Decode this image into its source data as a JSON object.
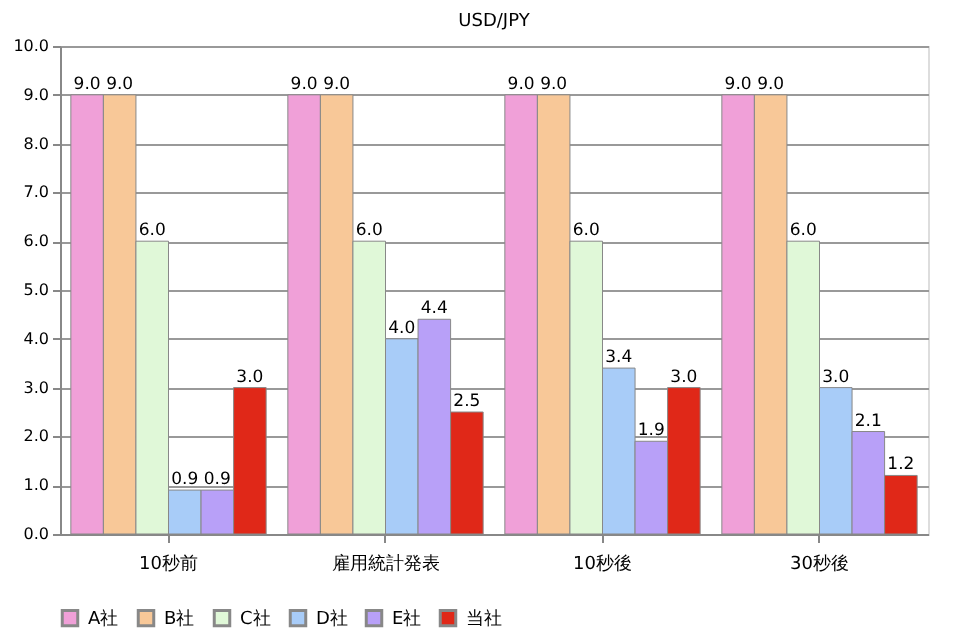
{
  "chart_data": {
    "type": "bar",
    "title": "USD/JPY",
    "categories": [
      "10秒前",
      "雇用統計発表",
      "10秒後",
      "30秒後"
    ],
    "series": [
      {
        "name": "A社",
        "color": "#f0a0d8",
        "values": [
          9.0,
          9.0,
          9.0,
          9.0
        ],
        "value_labels": [
          "9.0",
          "9.0",
          "9.0",
          "9.0"
        ]
      },
      {
        "name": "B社",
        "color": "#f8c898",
        "values": [
          9.0,
          9.0,
          9.0,
          9.0
        ],
        "value_labels": [
          "9.0",
          "9.0",
          "9.0",
          "9.0"
        ]
      },
      {
        "name": "C社",
        "color": "#e0f8d8",
        "values": [
          6.0,
          6.0,
          6.0,
          6.0
        ],
        "value_labels": [
          "6.0",
          "6.0",
          "6.0",
          "6.0"
        ]
      },
      {
        "name": "D社",
        "color": "#a8ccf8",
        "values": [
          0.9,
          4.0,
          3.4,
          3.0
        ],
        "value_labels": [
          "0.9",
          "4.0",
          "3.4",
          "3.0"
        ]
      },
      {
        "name": "E社",
        "color": "#b8a0f8",
        "values": [
          0.9,
          4.4,
          1.9,
          2.1
        ],
        "value_labels": [
          "0.9",
          "4.4",
          "1.9",
          "2.1"
        ]
      },
      {
        "name": "当社",
        "color": "#e02818",
        "values": [
          3.0,
          2.5,
          3.0,
          1.2
        ],
        "value_labels": [
          "3.0",
          "2.5",
          "3.0",
          "1.2"
        ]
      }
    ],
    "ylim": [
      0,
      10
    ],
    "yticks": [
      {
        "value": 0,
        "label": "0.0"
      },
      {
        "value": 1,
        "label": "1.0"
      },
      {
        "value": 2,
        "label": "2.0"
      },
      {
        "value": 3,
        "label": "3.0"
      },
      {
        "value": 4,
        "label": "4.0"
      },
      {
        "value": 5,
        "label": "5.0"
      },
      {
        "value": 6,
        "label": "6.0"
      },
      {
        "value": 7,
        "label": "7.0"
      },
      {
        "value": 8,
        "label": "8.0"
      },
      {
        "value": 9,
        "label": "9.0"
      },
      {
        "value": 10,
        "label": "10.0"
      }
    ],
    "grid": "y",
    "legend": "bottom"
  }
}
